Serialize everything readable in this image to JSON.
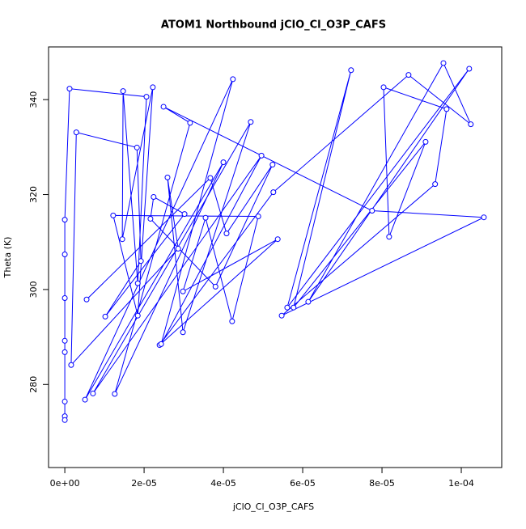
{
  "chart_data": {
    "type": "line",
    "title": "ATOM1 Northbound jClO_Cl_O3P_CAFS",
    "x_label": "jClO_Cl_O3P_CAFS",
    "y_label": "Theta (K)",
    "xlim": [
      -4.1e-06,
      0.0001102
    ],
    "ylim": [
      262.5,
      351.1
    ],
    "xticks": [
      {
        "value": 0,
        "label": "0e+00"
      },
      {
        "value": 2e-05,
        "label": "2e-05"
      },
      {
        "value": 4e-05,
        "label": "4e-05"
      },
      {
        "value": 6e-05,
        "label": "6e-05"
      },
      {
        "value": 8e-05,
        "label": "8e-05"
      },
      {
        "value": 0.0001,
        "label": "1e-04"
      }
    ],
    "yticks": [
      280,
      300,
      320,
      340
    ],
    "series": [
      {
        "color": "#0000ff",
        "x": [
          0,
          0,
          0,
          0,
          0,
          0,
          0,
          0,
          1.2e-06,
          2.06e-05,
          1.84e-05,
          1.47e-05,
          1.45e-05,
          2.22e-05,
          1.84e-05,
          1.22e-05,
          4.88e-05,
          4.22e-05,
          3.55e-05,
          2.98e-05,
          5.37e-05,
          2.39e-05,
          5.26e-05,
          8.67e-05,
          0.0001024,
          9.55e-05,
          6.14e-05,
          0.000102,
          5.61e-05,
          7.22e-05,
          5.77e-05,
          9.1e-05,
          8.18e-05,
          8.04e-05,
          9.63e-05,
          9.34e-05,
          5.47e-05,
          0.0001057,
          7.75e-05,
          2.49e-05,
          3.16e-05,
          1.26e-05,
          4e-05,
          5.1e-06,
          4.24e-05,
          2.43e-05,
          4.96e-05,
          7.1e-06,
          4.69e-05,
          2.98e-05,
          2.59e-05,
          2.86e-05,
          1.6e-06,
          2.9e-06,
          1.82e-05,
          1.92e-05,
          1.02e-05,
          3.02e-05,
          2.24e-05,
          2.16e-05,
          3.8e-05,
          5.24e-05,
          4.08e-05,
          3.67e-05,
          5.5e-06
        ],
        "values": [
          273.3,
          272.5,
          276.4,
          286.8,
          289.2,
          298.2,
          307.4,
          314.7,
          342.3,
          340.6,
          301.3,
          341.8,
          310.6,
          342.6,
          294.5,
          315.6,
          315.4,
          293.3,
          315.1,
          299.6,
          310.6,
          288.3,
          320.5,
          345.2,
          334.8,
          347.7,
          297.4,
          346.5,
          296.2,
          346.2,
          296.2,
          331.1,
          311.1,
          342.6,
          338.0,
          322.2,
          294.5,
          315.2,
          316.6,
          338.5,
          335.1,
          278.0,
          326.8,
          276.8,
          344.3,
          288.5,
          328.2,
          278.1,
          335.3,
          291.0,
          323.6,
          308.6,
          284.1,
          333.1,
          329.9,
          306.0,
          294.3,
          315.9,
          319.5,
          314.9,
          300.6,
          326.3,
          311.8,
          323.5,
          297.9
        ]
      }
    ]
  }
}
